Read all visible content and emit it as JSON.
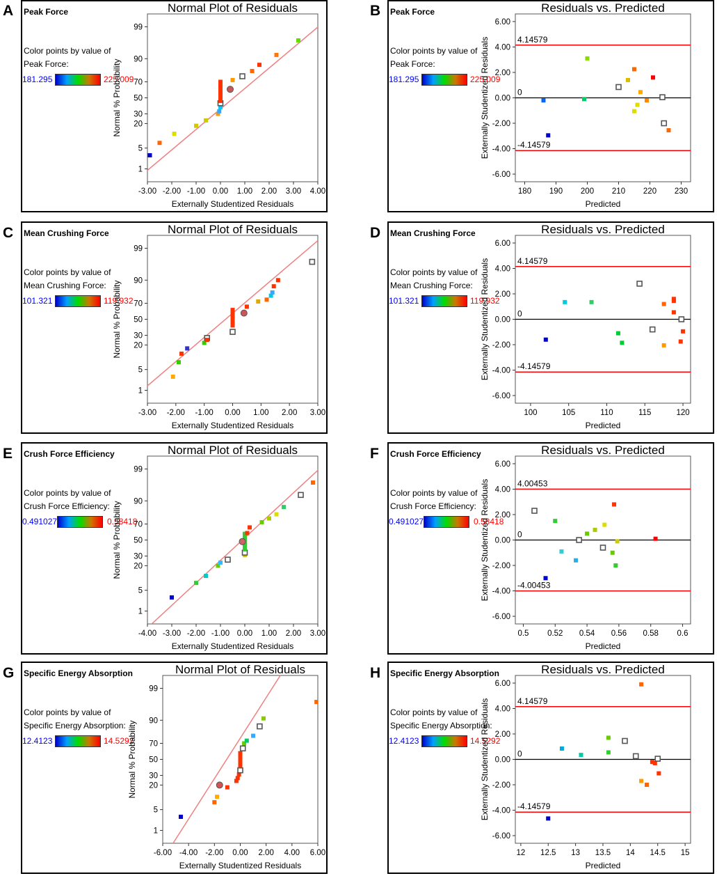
{
  "colors": {
    "refline": "#f08080",
    "limitline": "#ff0000",
    "legend_min": "#0000ff",
    "legend_max": "#ff0000"
  },
  "common": {
    "normal_title": "Normal Plot of Residuals",
    "rvp_title": "Residuals vs. Predicted",
    "color_by_prefix": "Color points by value of"
  },
  "panels": [
    {
      "letter": "A",
      "response": "Peak Force",
      "color_label": "Peak Force:",
      "legend_min": "181.295",
      "legend_max": "225.009"
    },
    {
      "letter": "B",
      "response": "Peak Force",
      "color_label": "Peak Force:",
      "legend_min": "181.295",
      "legend_max": "225.009"
    },
    {
      "letter": "C",
      "response": "Mean Crushing Force",
      "color_label": "Mean Crushing Force:",
      "legend_min": "101.321",
      "legend_max": "119.932"
    },
    {
      "letter": "D",
      "response": "Mean Crushing Force",
      "color_label": "Mean Crushing Force:",
      "legend_min": "101.321",
      "legend_max": "119.932"
    },
    {
      "letter": "E",
      "response": "Crush Force Efficiency",
      "color_label": "Crush Force Efficiency:",
      "legend_min": "0.491027",
      "legend_max": "0.58418"
    },
    {
      "letter": "F",
      "response": "Crush Force Efficiency",
      "color_label": "Crush Force Efficiency:",
      "legend_min": "0.491027",
      "legend_max": "0.58418"
    },
    {
      "letter": "G",
      "response": "Specific Energy Absorption",
      "color_label": "Specific Energy Absorption:",
      "legend_min": "12.4123",
      "legend_max": "14.5292"
    },
    {
      "letter": "H",
      "response": "Specific Energy Absorption",
      "color_label": "Specific Energy Absorption:",
      "legend_min": "12.4123",
      "legend_max": "14.5292"
    }
  ],
  "chart_data": [
    {
      "type": "scatter",
      "panel": "A",
      "title": "Normal Plot of Residuals",
      "xlabel": "Externally Studentized Residuals",
      "ylabel": "Normal % Probability",
      "xlim": [
        -3.0,
        4.0
      ],
      "xticks": [
        "-3.00",
        "-2.00",
        "-1.00",
        "0.00",
        "1.00",
        "2.00",
        "3.00",
        "4.00"
      ],
      "ylim": [
        0.3,
        99.7
      ],
      "yticks": [
        "1",
        "5",
        "20",
        "30",
        "50",
        "70",
        "90",
        "99"
      ],
      "refline": [
        [
          -3.3,
          0.5
        ],
        [
          4.5,
          99.6
        ]
      ],
      "points": [
        [
          -2.9,
          3,
          "#0000cc"
        ],
        [
          -2.5,
          7,
          "#ff6600"
        ],
        [
          -1.9,
          12,
          "#dddd00"
        ],
        [
          -1.0,
          18,
          "#cccc00"
        ],
        [
          -0.6,
          23,
          "#cccc00"
        ],
        [
          -0.1,
          30,
          "#ff9900"
        ],
        [
          -0.05,
          33,
          "#33aaff"
        ],
        [
          0,
          38,
          "#00ccff"
        ],
        [
          0,
          43,
          "open"
        ],
        [
          0,
          46,
          "#ff3300"
        ],
        [
          0,
          49,
          "#ff3300"
        ],
        [
          0,
          52,
          "#ff3300"
        ],
        [
          0,
          55,
          "#ff3300"
        ],
        [
          0,
          58,
          "#ff3300"
        ],
        [
          0,
          61,
          "#ff3300"
        ],
        [
          0,
          64,
          "#ff3300"
        ],
        [
          0,
          67,
          "#ff3300"
        ],
        [
          0,
          70,
          "#ff3300"
        ],
        [
          0.4,
          61,
          "#cc5555"
        ],
        [
          0.5,
          72,
          "#ff9900"
        ],
        [
          0.9,
          76,
          "open"
        ],
        [
          1.3,
          81,
          "#ff6600"
        ],
        [
          1.6,
          86,
          "#ff3300"
        ],
        [
          2.3,
          92,
          "#ff7700"
        ],
        [
          3.2,
          97,
          "#66dd00"
        ]
      ]
    },
    {
      "type": "scatter",
      "panel": "B",
      "title": "Residuals vs. Predicted",
      "xlabel": "Predicted",
      "ylabel": "Externally Studentized Residuals",
      "xlim": [
        177,
        233
      ],
      "xticks": [
        "180",
        "190",
        "200",
        "210",
        "220",
        "230"
      ],
      "ylim": [
        -6.6,
        6.6
      ],
      "yticks": [
        "-6.00",
        "-4.00",
        "-2.00",
        "0.00",
        "2.00",
        "4.00",
        "6.00"
      ],
      "limits": [
        "4.14579",
        "-4.14579"
      ],
      "zero_label": "0",
      "points": [
        [
          186,
          -0.2,
          "#0066ff"
        ],
        [
          187.5,
          -2.95,
          "#0000cc"
        ],
        [
          199,
          -0.1,
          "#00cc66"
        ],
        [
          200,
          3.1,
          "#88dd00"
        ],
        [
          210,
          0.85,
          "open"
        ],
        [
          213,
          1.4,
          "#ddbb00"
        ],
        [
          215,
          2.25,
          "#ff6600"
        ],
        [
          215,
          -1.05,
          "#dddd00"
        ],
        [
          216,
          -0.55,
          "#dddd00"
        ],
        [
          217,
          0.45,
          "#ffaa00"
        ],
        [
          219,
          -0.2,
          "#ff8800"
        ],
        [
          221,
          1.6,
          "#ff0000"
        ],
        [
          224,
          0.05,
          "open"
        ],
        [
          224.5,
          -2.0,
          "open"
        ],
        [
          226,
          -2.55,
          "#ff6600"
        ]
      ]
    },
    {
      "type": "scatter",
      "panel": "C",
      "title": "Normal Plot of Residuals",
      "xlabel": "Externally Studentized Residuals",
      "ylabel": "Normal % Probability",
      "xlim": [
        -3.0,
        3.0
      ],
      "xticks": [
        "-3.00",
        "-2.00",
        "-1.00",
        "0.00",
        "1.00",
        "2.00",
        "3.00"
      ],
      "ylim": [
        0.3,
        99.7
      ],
      "yticks": [
        "1",
        "5",
        "20",
        "30",
        "50",
        "70",
        "90",
        "99"
      ],
      "refline": [
        [
          -3.5,
          0.5
        ],
        [
          3.0,
          99.5
        ]
      ],
      "points": [
        [
          -2.1,
          3,
          "#ffaa00"
        ],
        [
          -1.9,
          8,
          "#33cc00"
        ],
        [
          -1.8,
          13,
          "#ff3300"
        ],
        [
          -1.6,
          17,
          "#3333cc"
        ],
        [
          -1.0,
          22,
          "#33cc00"
        ],
        [
          -0.9,
          27,
          "open"
        ],
        [
          -0.9,
          25,
          "#ff3300"
        ],
        [
          0,
          34,
          "open"
        ],
        [
          0,
          42,
          "#ff3300"
        ],
        [
          0,
          46,
          "#ff3300"
        ],
        [
          0,
          50,
          "#ff3300"
        ],
        [
          0,
          54,
          "#ff3300"
        ],
        [
          0,
          58,
          "#ff3300"
        ],
        [
          0,
          62,
          "#ff3300"
        ],
        [
          0.4,
          58,
          "#cc5555"
        ],
        [
          0.5,
          66,
          "#ff3300"
        ],
        [
          0.9,
          72,
          "#ddaa00"
        ],
        [
          1.2,
          74,
          "#ff6600"
        ],
        [
          1.35,
          78,
          "#00ccdd"
        ],
        [
          1.4,
          81,
          "#33aaff"
        ],
        [
          1.45,
          86,
          "#ff3300"
        ],
        [
          1.6,
          90,
          "#ff3300"
        ],
        [
          2.8,
          97,
          "open"
        ]
      ]
    },
    {
      "type": "scatter",
      "panel": "D",
      "title": "Residuals vs. Predicted",
      "xlabel": "Predicted",
      "ylabel": "Externally Studentized Residuals",
      "xlim": [
        98,
        121
      ],
      "xticks": [
        "100",
        "105",
        "110",
        "115",
        "120"
      ],
      "ylim": [
        -6.6,
        6.6
      ],
      "yticks": [
        "-6.00",
        "-4.00",
        "-2.00",
        "0.00",
        "2.00",
        "4.00",
        "6.00"
      ],
      "limits": [
        "4.14579",
        "-4.14579"
      ],
      "zero_label": "0",
      "points": [
        [
          102,
          -1.6,
          "#0000cc"
        ],
        [
          104.5,
          1.35,
          "#00ccdd"
        ],
        [
          108,
          1.35,
          "#33cc66"
        ],
        [
          111.5,
          -1.1,
          "#00cc33"
        ],
        [
          112,
          -1.85,
          "#00cc33"
        ],
        [
          114.3,
          2.8,
          "open"
        ],
        [
          116,
          -0.8,
          "open"
        ],
        [
          117.5,
          1.2,
          "#ff6600"
        ],
        [
          117.5,
          -2.05,
          "#ff9900"
        ],
        [
          118.8,
          1.45,
          "#ff3300"
        ],
        [
          118.8,
          1.6,
          "#ff3300"
        ],
        [
          118.8,
          0.55,
          "#ff3300"
        ],
        [
          119.8,
          0,
          "open"
        ],
        [
          120,
          -0.95,
          "#ff3300"
        ],
        [
          119.7,
          -1.75,
          "#ff3300"
        ]
      ]
    },
    {
      "type": "scatter",
      "panel": "E",
      "title": "Normal Plot of Residuals",
      "xlabel": "Externally Studentized Residuals",
      "ylabel": "Normal % Probability",
      "xlim": [
        -4.0,
        3.0
      ],
      "xticks": [
        "-4.00",
        "-3.00",
        "-2.00",
        "-1.00",
        "0.00",
        "1.00",
        "2.00",
        "3.00"
      ],
      "ylim": [
        0.3,
        99.7
      ],
      "yticks": [
        "1",
        "5",
        "20",
        "30",
        "50",
        "70",
        "90",
        "99"
      ],
      "refline": [
        [
          -4.0,
          0.2
        ],
        [
          3.5,
          99.6
        ]
      ],
      "points": [
        [
          -3.0,
          3,
          "#0000cc"
        ],
        [
          -2.0,
          8,
          "#33cc33"
        ],
        [
          -1.6,
          12,
          "#00cccc"
        ],
        [
          -1.1,
          20,
          "#66cc00"
        ],
        [
          -1.0,
          23,
          "#33bbff"
        ],
        [
          -0.7,
          26,
          "open"
        ],
        [
          0,
          31,
          "#cccc00"
        ],
        [
          0,
          34,
          "open"
        ],
        [
          0,
          38,
          "#33cc33"
        ],
        [
          0,
          42,
          "#33cc33"
        ],
        [
          0,
          46,
          "#33cc33"
        ],
        [
          0,
          50,
          "#33cc33"
        ],
        [
          0,
          54,
          "#33cc33"
        ],
        [
          0,
          58,
          "#33cc33"
        ],
        [
          -0.1,
          48,
          "#cc6666"
        ],
        [
          0.1,
          59,
          "#ff3300"
        ],
        [
          0.2,
          66,
          "#ff3300"
        ],
        [
          0.7,
          72,
          "#66cc00"
        ],
        [
          1.0,
          76,
          "#aacc00"
        ],
        [
          1.3,
          80,
          "#dddd00"
        ],
        [
          1.6,
          86,
          "#33cc66"
        ],
        [
          2.3,
          93,
          "open"
        ],
        [
          2.8,
          97,
          "#ff6600"
        ]
      ]
    },
    {
      "type": "scatter",
      "panel": "F",
      "title": "Residuals vs. Predicted",
      "xlabel": "Predicted",
      "ylabel": "Externally Studentized Residuals",
      "xlim": [
        0.495,
        0.605
      ],
      "xticks": [
        "0.5",
        "0.52",
        "0.54",
        "0.56",
        "0.58",
        "0.6"
      ],
      "ylim": [
        -6.6,
        6.6
      ],
      "yticks": [
        "-6.00",
        "-4.00",
        "-2.00",
        "0.00",
        "2.00",
        "4.00",
        "6.00"
      ],
      "limits": [
        "4.00453",
        "-4.00453"
      ],
      "zero_label": "0",
      "points": [
        [
          0.507,
          2.3,
          "open"
        ],
        [
          0.52,
          1.5,
          "#33cc33"
        ],
        [
          0.524,
          -0.9,
          "#33ccdd"
        ],
        [
          0.514,
          -3.0,
          "#0000cc"
        ],
        [
          0.533,
          -1.6,
          "#33aadd"
        ],
        [
          0.535,
          0.0,
          "open"
        ],
        [
          0.54,
          0.5,
          "#66cc00"
        ],
        [
          0.545,
          0.8,
          "#aacc00"
        ],
        [
          0.55,
          -0.6,
          "open"
        ],
        [
          0.551,
          1.2,
          "#dddd00"
        ],
        [
          0.556,
          -1.0,
          "#66cc00"
        ],
        [
          0.558,
          -2.0,
          "#33cc33"
        ],
        [
          0.557,
          2.8,
          "#ff3300"
        ],
        [
          0.559,
          -0.1,
          "#cccc00"
        ],
        [
          0.583,
          0.1,
          "#ff0000"
        ]
      ]
    },
    {
      "type": "scatter",
      "panel": "G",
      "title": "Normal Plot of Residuals",
      "xlabel": "Externally Studentized Residuals",
      "ylabel": "Normal % Probability",
      "xlim": [
        -6.0,
        6.0
      ],
      "xticks": [
        "-6.00",
        "-4.00",
        "-2.00",
        "0.00",
        "2.00",
        "4.00",
        "6.00"
      ],
      "ylim": [
        0.3,
        99.7
      ],
      "yticks": [
        "1",
        "5",
        "20",
        "30",
        "50",
        "70",
        "90",
        "99"
      ],
      "refline": [
        [
          -5.2,
          0.3
        ],
        [
          3.1,
          99.7
        ]
      ],
      "points": [
        [
          -4.6,
          3,
          "#0000cc"
        ],
        [
          -2.0,
          8,
          "#ff6600"
        ],
        [
          -1.8,
          11,
          "#ffaa00"
        ],
        [
          -1.0,
          18,
          "#ff3300"
        ],
        [
          -1.6,
          20,
          "#cc5555"
        ],
        [
          -0.3,
          24,
          "#ff3300"
        ],
        [
          -0.2,
          27,
          "#ff3300"
        ],
        [
          -0.1,
          31,
          "#ff3300"
        ],
        [
          0,
          36,
          "open"
        ],
        [
          0,
          42,
          "#ff3300"
        ],
        [
          0,
          46,
          "#ff3300"
        ],
        [
          0,
          50,
          "#ff3300"
        ],
        [
          0,
          54,
          "#ff3300"
        ],
        [
          0,
          58,
          "#ff3300"
        ],
        [
          0.2,
          64,
          "open"
        ],
        [
          0.3,
          70,
          "#66cc00"
        ],
        [
          0.5,
          73,
          "#00cc66"
        ],
        [
          1.0,
          78,
          "#33aaff"
        ],
        [
          1.5,
          86,
          "open"
        ],
        [
          1.8,
          91,
          "#88cc00"
        ],
        [
          5.9,
          97,
          "#ff6600"
        ]
      ]
    },
    {
      "type": "scatter",
      "panel": "H",
      "title": "Residuals vs. Predicted",
      "xlabel": "Predicted",
      "ylabel": "Externally Studentized Residuals",
      "xlim": [
        11.9,
        15.1
      ],
      "xticks": [
        "12",
        "12.5",
        "13",
        "13.5",
        "14",
        "14.5",
        "15"
      ],
      "ylim": [
        -6.6,
        6.6
      ],
      "yticks": [
        "-6.00",
        "-4.00",
        "-2.00",
        "0.00",
        "2.00",
        "4.00",
        "6.00"
      ],
      "limits": [
        "4.14579",
        "-4.14579"
      ],
      "zero_label": "0",
      "points": [
        [
          12.5,
          -4.65,
          "#0000cc"
        ],
        [
          12.75,
          0.85,
          "#00aadd"
        ],
        [
          13.1,
          0.35,
          "#00ccaa"
        ],
        [
          13.6,
          1.7,
          "#66cc00"
        ],
        [
          13.6,
          0.55,
          "#33cc33"
        ],
        [
          13.9,
          1.45,
          "open"
        ],
        [
          14.1,
          0.25,
          "open"
        ],
        [
          14.2,
          5.9,
          "#ff6600"
        ],
        [
          14.2,
          -1.7,
          "#ff9900"
        ],
        [
          14.3,
          -2.0,
          "#ff6600"
        ],
        [
          14.4,
          -0.2,
          "#ff3300"
        ],
        [
          14.45,
          -0.3,
          "#ff3300"
        ],
        [
          14.5,
          0.05,
          "open"
        ],
        [
          14.52,
          -1.1,
          "#ff3300"
        ]
      ]
    }
  ]
}
